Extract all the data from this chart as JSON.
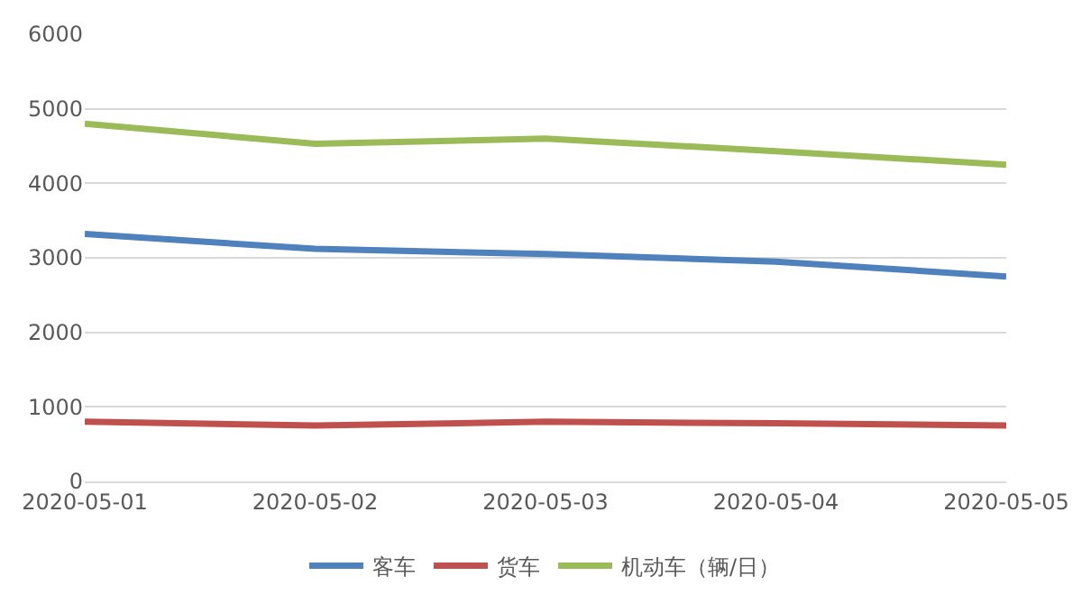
{
  "chart_data": {
    "type": "line",
    "categories": [
      "2020-05-01",
      "2020-05-02",
      "2020-05-03",
      "2020-05-04",
      "2020-05-05"
    ],
    "series": [
      {
        "name": "客车",
        "color": "#4f81bd",
        "values": [
          3320,
          3120,
          3050,
          2950,
          2750
        ]
      },
      {
        "name": "货车",
        "color": "#c0504d",
        "values": [
          800,
          750,
          800,
          780,
          750
        ]
      },
      {
        "name": "机动车（辆/日）",
        "color": "#9bbb59",
        "values": [
          4800,
          4530,
          4600,
          4430,
          4250
        ]
      }
    ],
    "ylim": [
      0,
      6000
    ],
    "yticks": [
      0,
      1000,
      2000,
      3000,
      4000,
      5000,
      6000
    ],
    "grid": "y",
    "legend": "bottom",
    "marker": "none",
    "line_style": "solid"
  }
}
